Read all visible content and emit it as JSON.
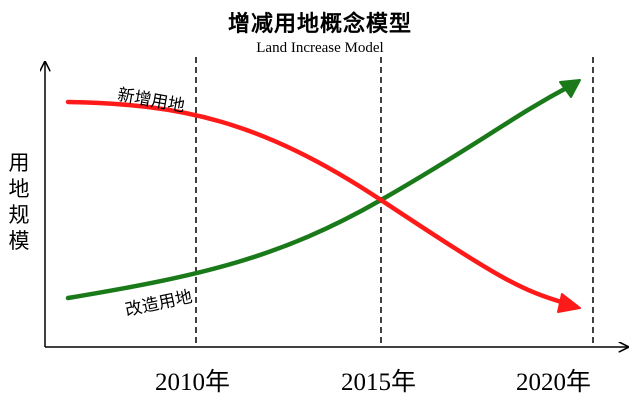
{
  "title": "增减用地概念模型",
  "subtitle": "Land Increase Model",
  "ylabel": "用地规模",
  "xticks": [
    "2010年",
    "2015年",
    "2020年"
  ],
  "curves": {
    "new_land": {
      "label": "新增用地",
      "color": "#ff1a1a"
    },
    "renovated_land": {
      "label": "改造用地",
      "color": "#1a7a1a"
    }
  }
}
